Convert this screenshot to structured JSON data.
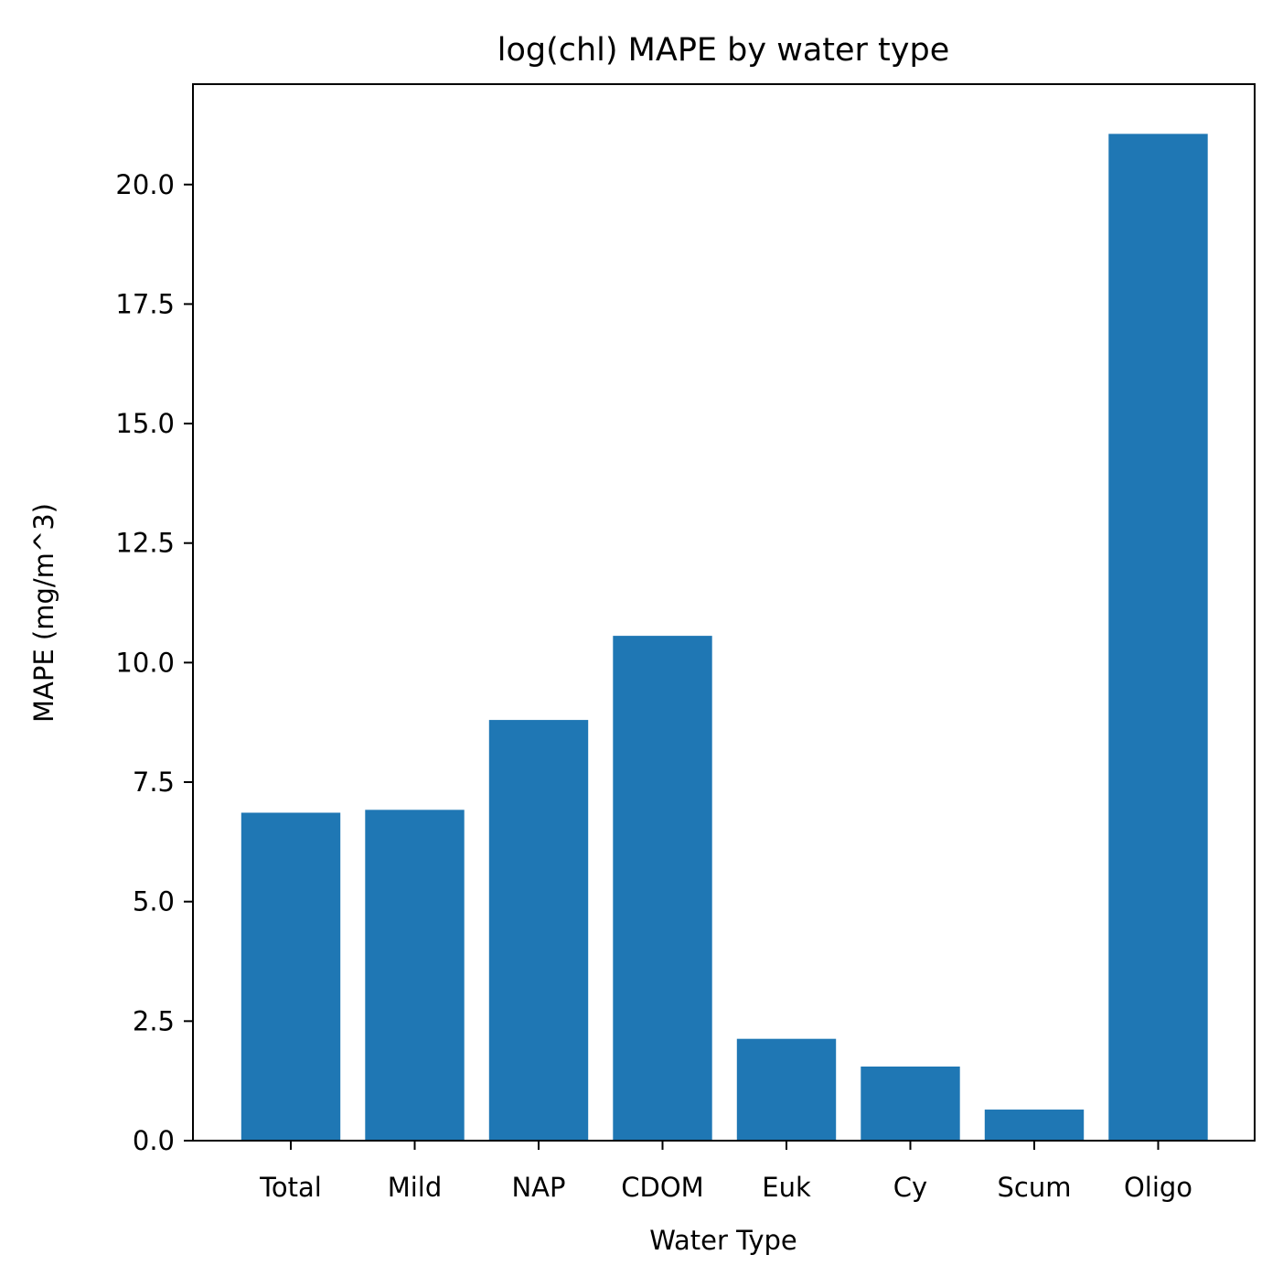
{
  "chart_data": {
    "type": "bar",
    "title": "log(chl) MAPE by water type",
    "xlabel": "Water Type",
    "ylabel": "MAPE (mg/m^3)",
    "categories": [
      "Total",
      "Mild",
      "NAP",
      "CDOM",
      "Euk",
      "Cy",
      "Scum",
      "Oligo"
    ],
    "values": [
      6.86,
      6.92,
      8.8,
      10.56,
      2.13,
      1.55,
      0.65,
      21.06
    ],
    "ylim": [
      0,
      22.1
    ],
    "yticks": [
      0.0,
      2.5,
      5.0,
      7.5,
      10.0,
      12.5,
      15.0,
      17.5,
      20.0
    ],
    "ytick_labels": [
      "0.0",
      "2.5",
      "5.0",
      "7.5",
      "10.0",
      "12.5",
      "15.0",
      "17.5",
      "20.0"
    ],
    "bar_color": "#1f77b4",
    "grid": false,
    "legend": false
  }
}
